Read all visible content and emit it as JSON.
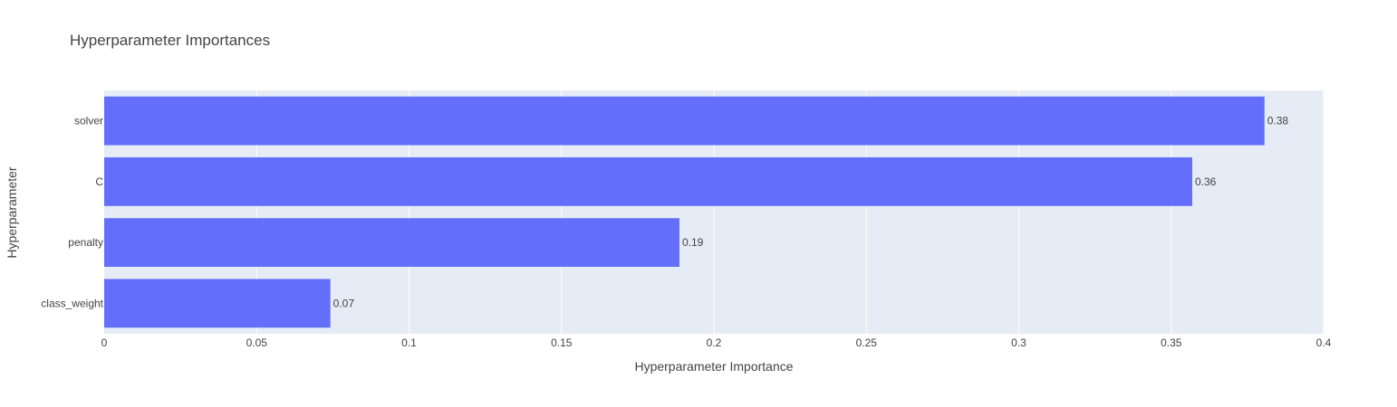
{
  "chart_data": {
    "type": "bar",
    "orientation": "horizontal",
    "title": "Hyperparameter Importances",
    "xlabel": "Hyperparameter Importance",
    "ylabel": "Hyperparameter",
    "categories": [
      "solver",
      "C",
      "penalty",
      "class_weight"
    ],
    "values": [
      0.3806,
      0.3569,
      0.1887,
      0.0742
    ],
    "data_labels": [
      "0.38",
      "0.36",
      "0.19",
      "0.07"
    ],
    "xlim": [
      0,
      0.4
    ],
    "x_ticks": [
      0,
      0.05,
      0.1,
      0.15,
      0.2,
      0.25,
      0.3,
      0.35,
      0.4
    ],
    "x_tick_labels": [
      "0",
      "0.05",
      "0.1",
      "0.15",
      "0.2",
      "0.25",
      "0.3",
      "0.35",
      "0.4"
    ],
    "grid": true,
    "legend": "none",
    "colors": {
      "bar": "#636efa",
      "plot_background": "#e5ecf6",
      "grid": "#ffffff",
      "text": "#444444"
    }
  }
}
